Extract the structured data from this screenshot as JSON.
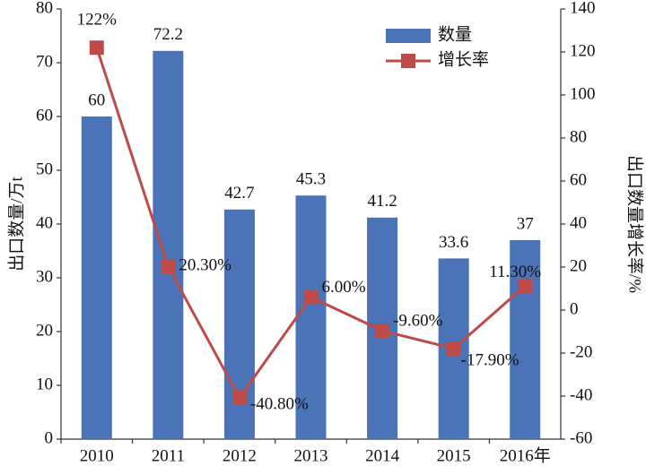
{
  "chart_data": {
    "type": "bar-line",
    "categories": [
      "2010",
      "2011",
      "2012",
      "2013",
      "2014",
      "2015",
      "2016年"
    ],
    "ylabel": "出口数量/万t",
    "y2label": "出口数量增长率/%",
    "ylim": [
      0,
      80
    ],
    "yticks": [
      0,
      10,
      20,
      30,
      40,
      50,
      60,
      70,
      80
    ],
    "y2lim": [
      -60,
      140
    ],
    "y2ticks": [
      -60,
      -40,
      -20,
      0,
      20,
      40,
      60,
      80,
      100,
      120,
      140
    ],
    "legend": "top-right",
    "series": [
      {
        "name": "数量",
        "color": "#4a73b8",
        "values": [
          60,
          72.2,
          42.7,
          45.3,
          41.2,
          33.6,
          37
        ]
      },
      {
        "name": "增长率",
        "color": "#be4b48",
        "axis": "y2",
        "values": [
          122,
          20.3,
          -40.8,
          6,
          -9.6,
          -17.9,
          11.3
        ],
        "value_labels": [
          "122%",
          "20.30%",
          "-40.80%",
          "6.00%",
          "-9.60%",
          "-17.90%",
          "11.30%"
        ]
      }
    ]
  }
}
